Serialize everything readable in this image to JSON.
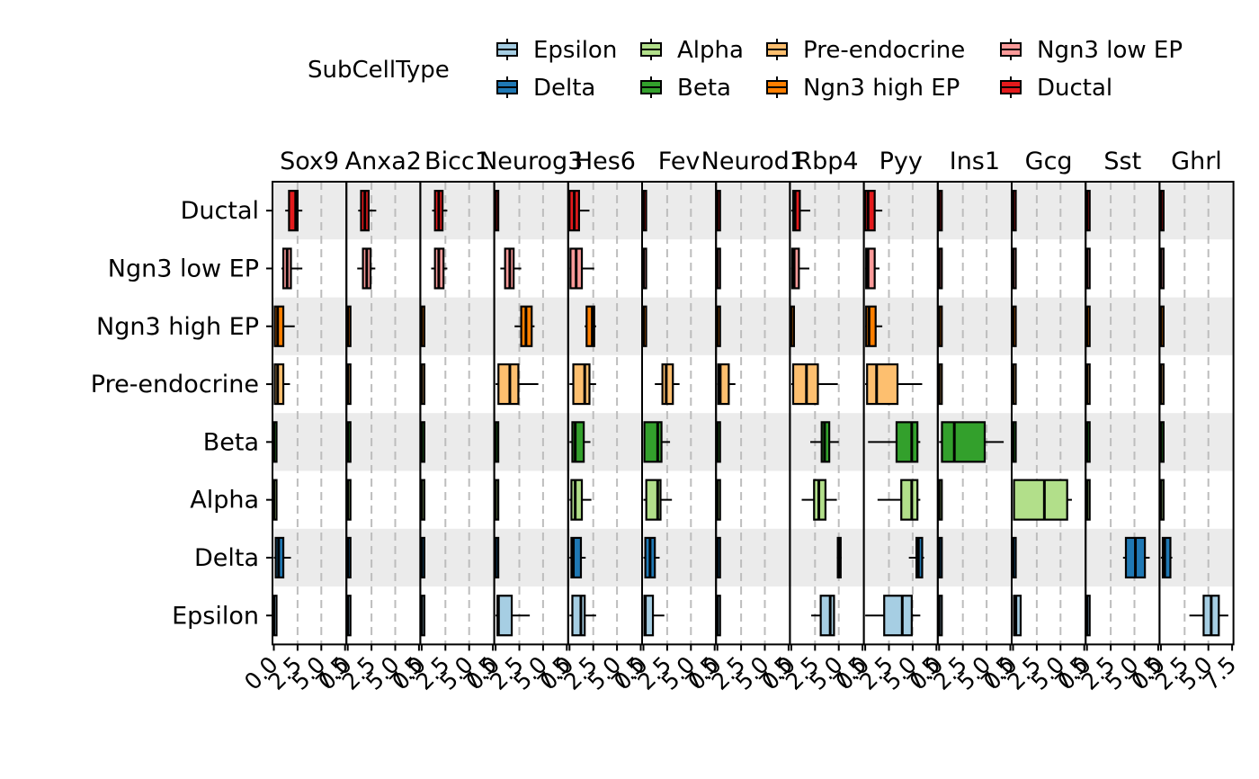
{
  "chart_data": {
    "type": "boxplot",
    "legend": {
      "title": "SubCellType",
      "position": "top",
      "entries": [
        {
          "label": "Epsilon",
          "color": "#a6cee3"
        },
        {
          "label": "Alpha",
          "color": "#b2df8a"
        },
        {
          "label": "Pre-endocrine",
          "color": "#fdbf6f"
        },
        {
          "label": "Ngn3 low EP",
          "color": "#fb9a99"
        },
        {
          "label": "Delta",
          "color": "#1f78b4"
        },
        {
          "label": "Beta",
          "color": "#33a02c"
        },
        {
          "label": "Ngn3 high EP",
          "color": "#ff7f00"
        },
        {
          "label": "Ductal",
          "color": "#e31a1c"
        }
      ]
    },
    "row_colors": {
      "Ductal": "#e31a1c",
      "Ngn3 low EP": "#fb9a99",
      "Ngn3 high EP": "#ff7f00",
      "Pre-endocrine": "#fdbf6f",
      "Beta": "#33a02c",
      "Alpha": "#b2df8a",
      "Delta": "#1f78b4",
      "Epsilon": "#a6cee3"
    },
    "rows": [
      "Ductal",
      "Ngn3 low EP",
      "Ngn3 high EP",
      "Pre-endocrine",
      "Beta",
      "Alpha",
      "Delta",
      "Epsilon"
    ],
    "xlim": [
      0,
      7.5
    ],
    "x_tick_values": [
      0,
      2.5,
      5,
      7.5
    ],
    "x_tick_labels": [
      "0.0",
      "2.5",
      "5.0",
      "7.5"
    ],
    "grid": "dashed vertical",
    "panels": [
      {
        "gene": "Sox9",
        "boxes": [
          [
            1.2,
            1.6,
            2.3,
            2.5,
            3.0
          ],
          [
            0.8,
            1.0,
            1.4,
            1.8,
            3.0
          ],
          [
            0,
            0.1,
            0.4,
            1.0,
            2.2
          ],
          [
            0,
            0.1,
            0.4,
            1.0,
            1.7
          ],
          [
            0,
            0,
            0,
            0.2,
            0.3
          ],
          [
            0,
            0,
            0,
            0.2,
            0.3
          ],
          [
            0,
            0.2,
            0.5,
            1.0,
            1.8
          ],
          [
            0,
            0,
            0,
            0.2,
            0.3
          ]
        ]
      },
      {
        "gene": "Anxa2",
        "boxes": [
          [
            1.1,
            1.4,
            1.8,
            2.2,
            3.0
          ],
          [
            1.0,
            1.6,
            2.0,
            2.4,
            2.9
          ],
          [
            0,
            0,
            0,
            0.2,
            0.3
          ],
          [
            0,
            0,
            0,
            0.2,
            0.3
          ],
          [
            0,
            0,
            0,
            0.2,
            0.3
          ],
          [
            0,
            0,
            0,
            0.2,
            0.3
          ],
          [
            0,
            0,
            0,
            0.2,
            0.3
          ],
          [
            0,
            0,
            0,
            0.2,
            0.3
          ]
        ]
      },
      {
        "gene": "Bicc1",
        "boxes": [
          [
            1.1,
            1.4,
            1.8,
            2.2,
            2.7
          ],
          [
            1.0,
            1.4,
            1.8,
            2.3,
            2.7
          ],
          [
            0,
            0,
            0,
            0,
            0
          ],
          [
            0,
            0,
            0,
            0,
            0
          ],
          [
            0,
            0,
            0,
            0,
            0
          ],
          [
            0,
            0,
            0,
            0,
            0
          ],
          [
            0,
            0,
            0,
            0,
            0
          ],
          [
            0,
            0,
            0,
            0,
            0
          ]
        ]
      },
      {
        "gene": "Neurog3",
        "boxes": [
          [
            0,
            0,
            0,
            0.2,
            0.3
          ],
          [
            0.5,
            1.0,
            1.5,
            1.9,
            2.7
          ],
          [
            2.0,
            2.7,
            3.2,
            3.8,
            4.1
          ],
          [
            0,
            0.3,
            1.5,
            2.4,
            4.5
          ],
          [
            0,
            0,
            0,
            0,
            0
          ],
          [
            0,
            0,
            0,
            0,
            0
          ],
          [
            0,
            0,
            0,
            0,
            0
          ],
          [
            0,
            0.2,
            0.3,
            1.7,
            3.6
          ]
        ]
      },
      {
        "gene": "Hes6",
        "boxes": [
          [
            0,
            0,
            0.5,
            1.0,
            2.1
          ],
          [
            0,
            0.1,
            0.7,
            1.3,
            2.6
          ],
          [
            1.6,
            1.8,
            2.4,
            2.6,
            2.8
          ],
          [
            0,
            0.4,
            1.6,
            2.1,
            2.8
          ],
          [
            0,
            0.3,
            0.6,
            1.5,
            2.2
          ],
          [
            0,
            0.2,
            0.6,
            1.3,
            2.3
          ],
          [
            0,
            0.2,
            0.4,
            1.2,
            1.7
          ],
          [
            0,
            0.3,
            1.2,
            1.6,
            2.8
          ]
        ]
      },
      {
        "gene": "Fev",
        "boxes": [
          [
            0,
            0,
            0,
            0.2,
            0.3
          ],
          [
            0,
            0,
            0,
            0,
            0
          ],
          [
            0,
            0,
            0,
            0,
            0
          ],
          [
            1.2,
            2.0,
            2.4,
            3.1,
            3.8
          ],
          [
            0,
            0.1,
            1.5,
            1.9,
            2.8
          ],
          [
            0,
            0.3,
            1.5,
            1.8,
            3.0
          ],
          [
            0,
            0.2,
            0.7,
            1.2,
            1.7
          ],
          [
            0,
            0.1,
            0.2,
            1.0,
            2.2
          ]
        ]
      },
      {
        "gene": "Neurod1",
        "boxes": [
          [
            0,
            0,
            0,
            0.2,
            0.3
          ],
          [
            0,
            0,
            0,
            0,
            0
          ],
          [
            0,
            0,
            0,
            0,
            0
          ],
          [
            0,
            0.1,
            0.3,
            1.2,
            1.9
          ],
          [
            0,
            0,
            0,
            0,
            0
          ],
          [
            0,
            0,
            0,
            0,
            0
          ],
          [
            0,
            0,
            0,
            0,
            0
          ],
          [
            0,
            0,
            0,
            0,
            0
          ]
        ]
      },
      {
        "gene": "Rbp4",
        "boxes": [
          [
            0,
            0.2,
            0.4,
            0.9,
            2.0
          ],
          [
            0,
            0.1,
            0.3,
            0.8,
            1.9
          ],
          [
            0,
            0,
            0,
            0.2,
            0.3
          ],
          [
            0,
            0.2,
            1.6,
            2.8,
            4.9
          ],
          [
            2.0,
            3.2,
            3.5,
            4.0,
            5.0
          ],
          [
            1.1,
            2.4,
            2.9,
            3.6,
            4.8
          ],
          [
            4.8,
            4.9,
            5.0,
            5.2,
            5.3
          ],
          [
            2.1,
            3.1,
            4.1,
            4.5,
            4.5
          ]
        ]
      },
      {
        "gene": "Pyy",
        "boxes": [
          [
            0,
            0,
            0.3,
            1.0,
            1.8
          ],
          [
            0,
            0.1,
            0.3,
            1.0,
            1.5
          ],
          [
            0,
            0.1,
            0.4,
            1.1,
            1.8
          ],
          [
            0,
            0.2,
            1.2,
            3.4,
            6.0
          ],
          [
            0.3,
            3.3,
            4.9,
            5.5,
            5.8
          ],
          [
            1.3,
            3.8,
            4.9,
            5.5,
            5.8
          ],
          [
            4.6,
            5.4,
            5.6,
            6.0,
            6.2
          ],
          [
            0,
            2.0,
            3.9,
            4.9,
            5.8
          ]
        ]
      },
      {
        "gene": "Ins1",
        "boxes": [
          [
            0,
            0,
            0,
            0.2,
            0.3
          ],
          [
            0,
            0,
            0,
            0,
            0
          ],
          [
            0,
            0,
            0,
            0,
            0
          ],
          [
            0,
            0,
            0,
            0,
            0
          ],
          [
            0,
            0.3,
            1.6,
            4.8,
            6.8
          ],
          [
            0,
            0,
            0,
            0,
            0
          ],
          [
            0,
            0,
            0,
            0,
            0
          ],
          [
            0,
            0,
            0,
            0,
            0
          ]
        ]
      },
      {
        "gene": "Gcg",
        "boxes": [
          [
            0,
            0,
            0,
            0.2,
            0.3
          ],
          [
            0,
            0,
            0,
            0,
            0
          ],
          [
            0,
            0,
            0,
            0,
            0
          ],
          [
            0,
            0,
            0,
            0,
            0
          ],
          [
            0,
            0,
            0,
            0,
            0
          ],
          [
            0,
            0.1,
            3.3,
            5.7,
            6.2
          ],
          [
            0,
            0,
            0,
            0,
            0
          ],
          [
            0,
            0.1,
            0.3,
            0.8,
            0.9
          ]
        ]
      },
      {
        "gene": "Sst",
        "boxes": [
          [
            0,
            0,
            0,
            0.2,
            0.3
          ],
          [
            0,
            0,
            0,
            0,
            0
          ],
          [
            0,
            0,
            0,
            0,
            0
          ],
          [
            0,
            0,
            0,
            0,
            0
          ],
          [
            0,
            0,
            0,
            0,
            0
          ],
          [
            0,
            0,
            0,
            0,
            0
          ],
          [
            3.8,
            4.1,
            5.1,
            6.1,
            6.6
          ],
          [
            0,
            0,
            0,
            0,
            0
          ]
        ]
      },
      {
        "gene": "Ghrl",
        "boxes": [
          [
            0,
            0,
            0,
            0.2,
            0.3
          ],
          [
            0,
            0,
            0,
            0,
            0
          ],
          [
            0,
            0,
            0,
            0,
            0
          ],
          [
            0,
            0,
            0,
            0,
            0
          ],
          [
            0,
            0,
            0,
            0,
            0
          ],
          [
            0,
            0,
            0,
            0,
            0
          ],
          [
            0,
            0.2,
            0.4,
            1.0,
            1.2
          ],
          [
            3.0,
            4.5,
            5.3,
            6.1,
            7.1
          ]
        ]
      }
    ]
  }
}
